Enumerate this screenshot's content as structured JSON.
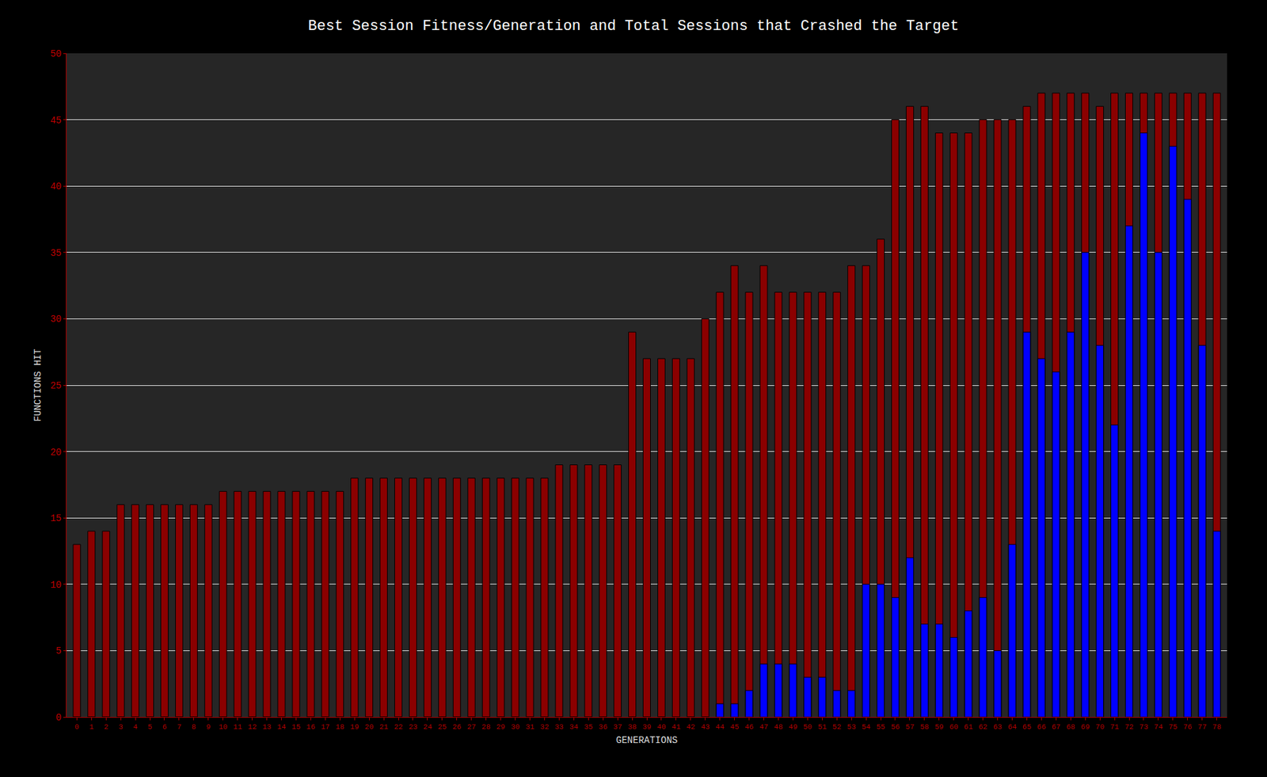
{
  "chart_data": {
    "type": "bar",
    "title": "Best Session Fitness/Generation and Total Sessions that Crashed the Target",
    "x_label": "GENERATIONS",
    "y_label": "FUNCTIONS HIT",
    "categories": [
      "0",
      "1",
      "2",
      "3",
      "4",
      "5",
      "6",
      "7",
      "8",
      "9",
      "10",
      "11",
      "12",
      "13",
      "14",
      "15",
      "16",
      "17",
      "18",
      "19",
      "20",
      "21",
      "22",
      "23",
      "24",
      "25",
      "26",
      "27",
      "28",
      "29",
      "30",
      "31",
      "32",
      "33",
      "34",
      "35",
      "36",
      "37",
      "38",
      "39",
      "40",
      "41",
      "42",
      "43",
      "44",
      "45",
      "46",
      "47",
      "48",
      "49",
      "50",
      "51",
      "52",
      "53",
      "54",
      "55",
      "56",
      "57",
      "58",
      "59",
      "60",
      "61",
      "62",
      "63",
      "64",
      "65",
      "66",
      "67",
      "68",
      "69",
      "70",
      "71",
      "72",
      "73",
      "74",
      "75",
      "76",
      "77",
      "78"
    ],
    "series": [
      {
        "color": "#8b0000",
        "values": [
          13,
          14,
          14,
          16,
          16,
          16,
          16,
          16,
          16,
          16,
          17,
          17,
          17,
          17,
          17,
          17,
          17,
          17,
          17,
          18,
          18,
          18,
          18,
          18,
          18,
          18,
          18,
          18,
          18,
          18,
          18,
          18,
          18,
          19,
          19,
          19,
          19,
          19,
          29,
          27,
          27,
          27,
          27,
          30,
          32,
          34,
          32,
          34,
          32,
          32,
          32,
          32,
          32,
          34,
          34,
          36,
          45,
          46,
          46,
          44,
          44,
          44,
          45,
          45,
          45,
          46,
          47,
          47,
          47,
          47,
          46,
          47,
          47,
          47,
          47,
          47,
          47,
          47,
          47
        ]
      },
      {
        "color": "#0000ff",
        "values": [
          0,
          0,
          0,
          0,
          0,
          0,
          0,
          0,
          0,
          0,
          0,
          0,
          0,
          0,
          0,
          0,
          0,
          0,
          0,
          0,
          0,
          0,
          0,
          0,
          0,
          0,
          0,
          0,
          0,
          0,
          0,
          0,
          0,
          0,
          0,
          0,
          0,
          0,
          0,
          0,
          0,
          0,
          0,
          0,
          1,
          1,
          2,
          4,
          4,
          4,
          3,
          3,
          2,
          2,
          10,
          10,
          9,
          12,
          7,
          7,
          6,
          8,
          9,
          5,
          13,
          29,
          27,
          26,
          29,
          35,
          28,
          22,
          37,
          44,
          35,
          43,
          39,
          28,
          14
        ]
      }
    ],
    "ylim": [
      0,
      50
    ],
    "yticks": [
      0,
      5,
      10,
      15,
      20,
      25,
      30,
      35,
      40,
      45,
      50
    ],
    "grid": true
  }
}
